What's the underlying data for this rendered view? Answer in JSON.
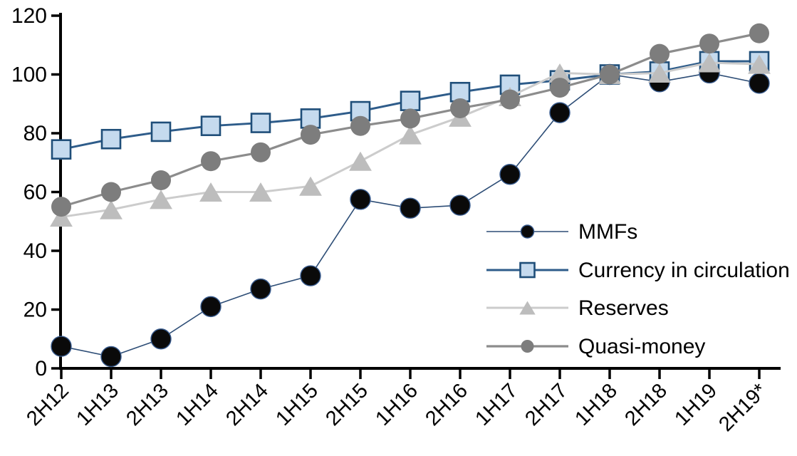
{
  "chart_data": {
    "type": "line",
    "title": "",
    "xlabel": "",
    "ylabel": "",
    "grid": false,
    "background": "#ffffff",
    "axis_color": "#000000",
    "ylim": [
      0,
      120
    ],
    "yticks": [
      0,
      20,
      40,
      60,
      80,
      100,
      120
    ],
    "legend_position": "inside-right",
    "categories": [
      "2H12",
      "1H13",
      "2H13",
      "1H14",
      "2H14",
      "1H15",
      "2H15",
      "1H16",
      "2H16",
      "1H17",
      "2H17",
      "1H18",
      "2H18",
      "1H19",
      "2H19*"
    ],
    "series": [
      {
        "name": "MMFs",
        "marker": "circle",
        "marker_fill": "#0a0a0a",
        "marker_stroke": "#36598c",
        "marker_stroke_width": 1.4,
        "line_color": "#2d4d76",
        "line_width": 1.6,
        "values": [
          7.5,
          4,
          10,
          21,
          27,
          31.5,
          57.5,
          54.5,
          55.5,
          66,
          87,
          100,
          97.5,
          100.5,
          97
        ]
      },
      {
        "name": "Currency in circulation",
        "marker": "square",
        "marker_fill": "#c5daee",
        "marker_stroke": "#1f4e79",
        "marker_stroke_width": 2.6,
        "line_color": "#2e5c8a",
        "line_width": 3,
        "values": [
          74.5,
          78,
          80.5,
          82.5,
          83.5,
          85,
          87.5,
          91,
          94,
          96.5,
          98,
          100,
          101,
          104.5,
          104.5
        ]
      },
      {
        "name": "Reserves",
        "marker": "triangle",
        "marker_fill": "#bdbdbd",
        "marker_stroke": "none",
        "marker_stroke_width": 0,
        "line_color": "#cccccc",
        "line_width": 3,
        "values": [
          51.5,
          54,
          57.5,
          60,
          60,
          62,
          70.5,
          79.5,
          85.5,
          92.5,
          100.5,
          100,
          100.5,
          104,
          103.5
        ]
      },
      {
        "name": "Quasi-money",
        "marker": "circle",
        "marker_fill": "#7d7d7d",
        "marker_stroke": "none",
        "marker_stroke_width": 0,
        "line_color": "#8c8c8c",
        "line_width": 3.2,
        "values": [
          55,
          60,
          64,
          70.5,
          73.5,
          79.5,
          82.5,
          85,
          88.5,
          91.5,
          95.5,
          100,
          107,
          110.5,
          114
        ]
      }
    ]
  }
}
